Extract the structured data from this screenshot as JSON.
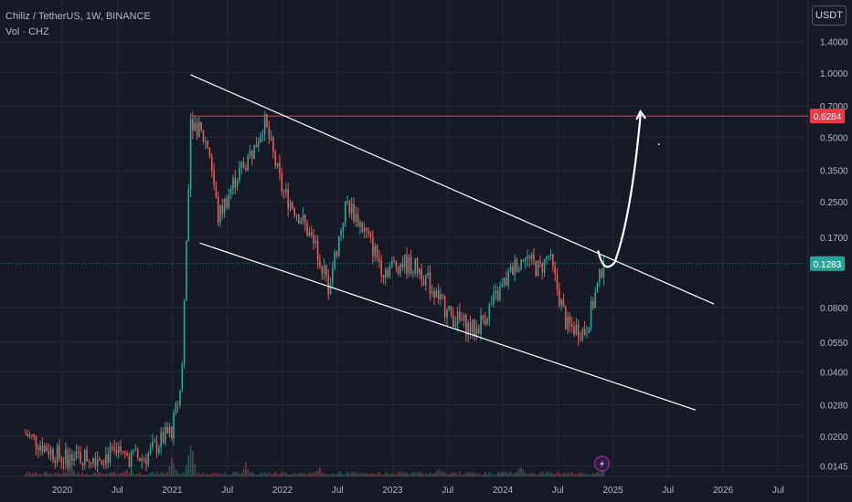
{
  "header": {
    "symbol": "Chiliz / TetherUS, 1W, BINANCE",
    "volume_label": "Vol · CHZ",
    "currency": "USDT"
  },
  "colors": {
    "background": "#161a25",
    "grid": "#242833",
    "axis_text": "#b2b5be",
    "up": "#26a69a",
    "down": "#ef5350",
    "trendline": "#ffffff",
    "level_line": "#f23645",
    "current_price": "#26a69a"
  },
  "chart_data": {
    "type": "candlestick",
    "y_scale": "log",
    "ylim": [
      0.0136,
      1.65
    ],
    "y_ticks": [
      "1.4000",
      "1.0000",
      "0.7000",
      "0.5000",
      "0.3500",
      "0.2500",
      "0.1700",
      "0.0800",
      "0.0550",
      "0.0400",
      "0.0280",
      "0.0200",
      "0.0145"
    ],
    "x_ticks": [
      "2020",
      "Jul",
      "2021",
      "Jul",
      "2022",
      "Jul",
      "2023",
      "Jul",
      "2024",
      "Jul",
      "2025",
      "Jul",
      "2026",
      "Jul"
    ],
    "price_labels": [
      {
        "value": 0.6284,
        "label": "0.6284",
        "color": "#f23645"
      },
      {
        "value": 0.1283,
        "label": "0.1283",
        "color": "#26a69a"
      }
    ],
    "horizontal_level": 0.6284,
    "current_price": 0.1283,
    "trendlines": [
      {
        "name": "upper channel",
        "from": [
          "2021-03",
          0.98
        ],
        "to": [
          "2025-12",
          0.083
        ]
      },
      {
        "name": "lower channel",
        "from": [
          "2021-04",
          0.16
        ],
        "to": [
          "2025-10",
          0.0265
        ]
      }
    ],
    "annotation": {
      "type": "projection-arrow",
      "from": [
        "2024-12",
        0.13
      ],
      "to": [
        "2025-04",
        0.66
      ]
    },
    "price_anchors": [
      [
        "2019-09",
        0.0205
      ],
      [
        "2020-01",
        0.0157
      ],
      [
        "2020-06",
        0.0163
      ],
      [
        "2020-10",
        0.0158
      ],
      [
        "2021-01",
        0.0216
      ],
      [
        "2021-02",
        0.035
      ],
      [
        "2021-03",
        0.62
      ],
      [
        "2021-05",
        0.45
      ],
      [
        "2021-06",
        0.21
      ],
      [
        "2021-08",
        0.33
      ],
      [
        "2021-10",
        0.45
      ],
      [
        "2021-11",
        0.6
      ],
      [
        "2022-01",
        0.28
      ],
      [
        "2022-03",
        0.21
      ],
      [
        "2022-05",
        0.14
      ],
      [
        "2022-06",
        0.1
      ],
      [
        "2022-08",
        0.25
      ],
      [
        "2022-10",
        0.18
      ],
      [
        "2022-12",
        0.12
      ],
      [
        "2023-02",
        0.13
      ],
      [
        "2023-04",
        0.12
      ],
      [
        "2023-07",
        0.075
      ],
      [
        "2023-10",
        0.062
      ],
      [
        "2023-12",
        0.085
      ],
      [
        "2024-03",
        0.14
      ],
      [
        "2024-05",
        0.12
      ],
      [
        "2024-06",
        0.14
      ],
      [
        "2024-08",
        0.065
      ],
      [
        "2024-10",
        0.062
      ],
      [
        "2024-12",
        0.1283
      ]
    ],
    "volume_spikes": [
      [
        "2020-02",
        0.35
      ],
      [
        "2020-08",
        0.22
      ],
      [
        "2021-01",
        0.55
      ],
      [
        "2021-03",
        1.0
      ],
      [
        "2021-09",
        0.35
      ],
      [
        "2022-05",
        0.25
      ],
      [
        "2023-06",
        0.18
      ],
      [
        "2024-03",
        0.28
      ],
      [
        "2024-12",
        0.4
      ]
    ],
    "lightning_marker": "2024-12"
  }
}
